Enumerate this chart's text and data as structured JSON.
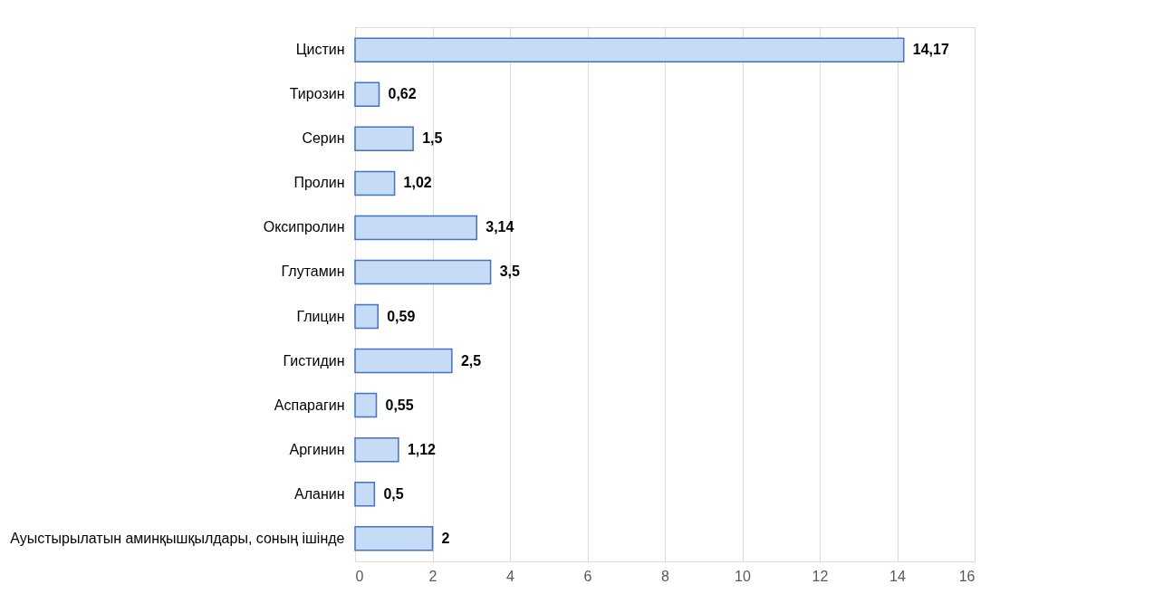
{
  "chart_data": {
    "type": "bar",
    "orientation": "horizontal",
    "categories": [
      "Цистин",
      "Тирозин",
      "Серин",
      "Пролин",
      "Оксипролин",
      "Глутамин",
      "Глицин",
      "Гистидин",
      "Аспарагин",
      "Аргинин",
      "Аланин",
      "Ауыстырылатын аминқышқылдары, соның ішінде"
    ],
    "values": [
      14.17,
      0.62,
      1.5,
      1.02,
      3.14,
      3.5,
      0.59,
      2.5,
      0.55,
      1.12,
      0.5,
      2
    ],
    "value_labels": [
      "14,17",
      "0,62",
      "1,5",
      "1,02",
      "3,14",
      "3,5",
      "0,59",
      "2,5",
      "0,55",
      "1,12",
      "0,5",
      "2"
    ],
    "color": "#c6dbf5",
    "xlim": [
      0,
      16
    ],
    "xticks": [
      0,
      2,
      4,
      6,
      8,
      10,
      12,
      14,
      16
    ],
    "grid": "x"
  }
}
